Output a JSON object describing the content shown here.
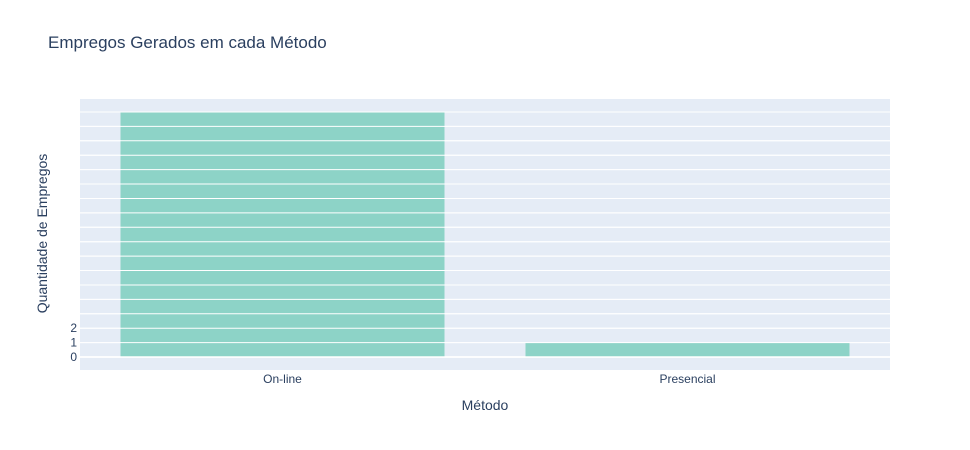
{
  "chart_data": {
    "type": "bar",
    "title": "Empregos Gerados em cada Método",
    "xlabel": "Método",
    "ylabel": "Quantidade de Empregos",
    "categories": [
      "On-line",
      "Presencial"
    ],
    "values": [
      17,
      1
    ],
    "y_tick_labels": [
      "0",
      "1",
      "2"
    ],
    "ylim": [
      -0.9,
      17.9
    ],
    "grid": true,
    "bar_color": "#8dd3c7",
    "plot_bg_color": "#e5ecf6",
    "grid_color": "#ffffff",
    "text_color": "#2a3f5f"
  }
}
